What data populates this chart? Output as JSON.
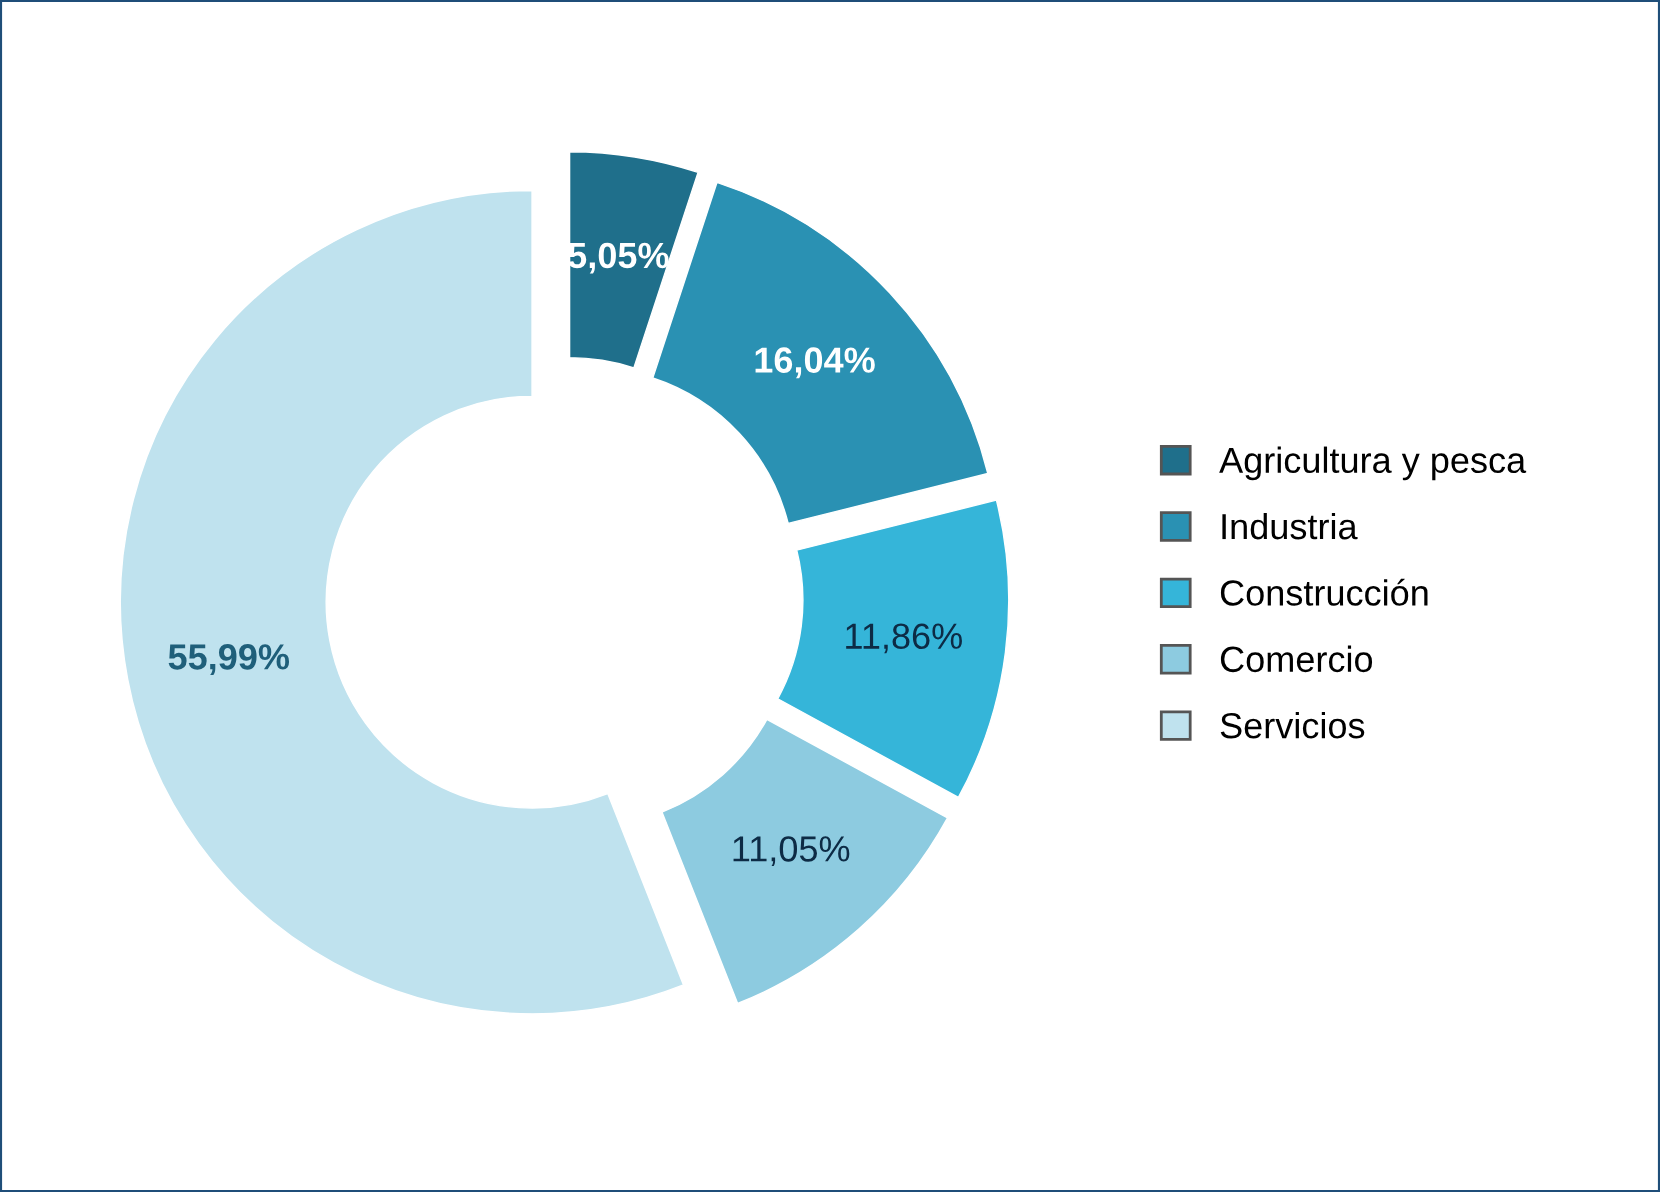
{
  "chart_data": {
    "type": "donut",
    "categories": [
      "Agricultura y pesca",
      "Industria",
      "Construcción",
      "Comercio",
      "Servicios"
    ],
    "values": [
      5.05,
      16.04,
      11.86,
      11.05,
      55.99
    ],
    "colors": [
      "#1f6f8b",
      "#2a91b3",
      "#35b5d9",
      "#8dcbe0",
      "#bfe2ee"
    ],
    "value_labels": [
      "5,05%",
      "16,04%",
      "11,86%",
      "11,05%",
      "55,99%"
    ],
    "legend": "right"
  }
}
